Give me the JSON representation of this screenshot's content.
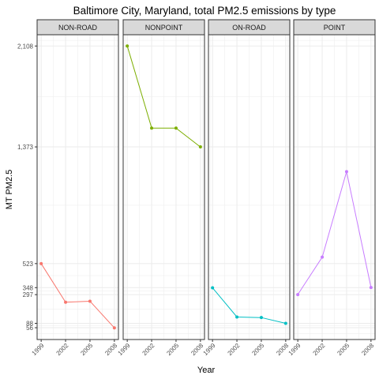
{
  "chart_data": {
    "type": "line",
    "title": "Baltimore City, Maryland, total PM2.5 emissions by type",
    "xlabel": "Year",
    "ylabel": "MT PM2.5",
    "x": [
      1999,
      2002,
      2005,
      2008
    ],
    "x_tick_labels": [
      "1999",
      "2002",
      "2005",
      "2008"
    ],
    "y_ticks": [
      56,
      88,
      297,
      348,
      523,
      1373,
      2108
    ],
    "y_tick_labels": [
      "56",
      "88",
      "297",
      "348",
      "523",
      "1,373",
      "2,108"
    ],
    "ylim": [
      -30,
      2190
    ],
    "grid": true,
    "facet_by": "type",
    "panel_background": "#ffffff",
    "grid_color": "#ebebeb",
    "strip_fill": "#d9d9d9",
    "panel_border": "#333333",
    "series": [
      {
        "name": "NON-ROAD",
        "color": "#F8766D",
        "values": [
          523,
          242,
          249,
          55
        ]
      },
      {
        "name": "NONPOINT",
        "color": "#7CAE00",
        "values": [
          2108,
          1510,
          1510,
          1373
        ]
      },
      {
        "name": "ON-ROAD",
        "color": "#00BFC4",
        "values": [
          347,
          134,
          130,
          88
        ]
      },
      {
        "name": "POINT",
        "color": "#C77CFF",
        "values": [
          297,
          570,
          1193,
          349
        ]
      }
    ]
  }
}
